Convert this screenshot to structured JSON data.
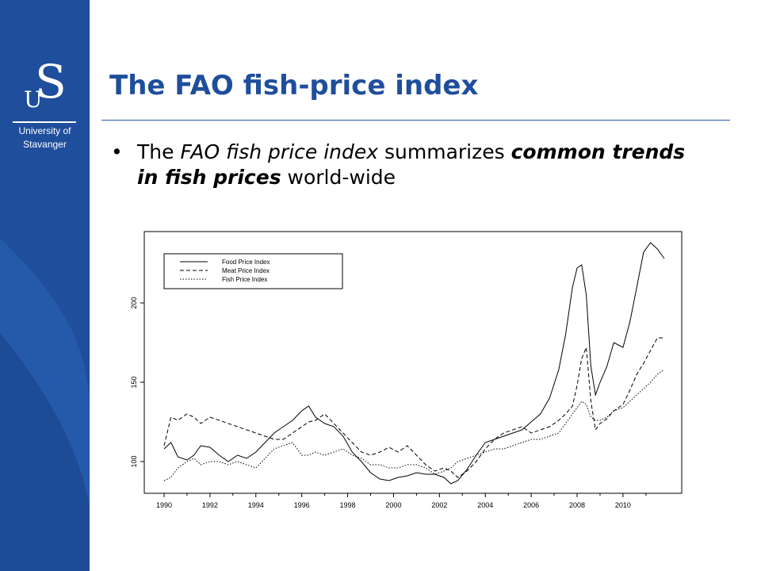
{
  "slide": {
    "title": "The FAO fish-price index",
    "bullet": {
      "parts": [
        {
          "text": "The ",
          "style": "normal"
        },
        {
          "text": "FAO fish price index",
          "style": "italic"
        },
        {
          "text": " summarizes ",
          "style": "normal"
        },
        {
          "text": "common trends in fish prices",
          "style": "bold-italic"
        },
        {
          "text": " world-wide",
          "style": "normal"
        }
      ]
    }
  },
  "branding": {
    "logo_letters": [
      "U",
      "S"
    ],
    "logo_line1": "University of",
    "logo_line2": "Stavanger",
    "sidebar_color": "#1f4e9c",
    "title_color": "#1f4e9c"
  },
  "chart_data": {
    "type": "line",
    "title": "",
    "xlabel": "",
    "ylabel": "",
    "xlim": [
      1990,
      2011.8
    ],
    "ylim": [
      80,
      245
    ],
    "x_ticks": [
      "1990",
      "1992",
      "1994",
      "1996",
      "1998",
      "2000",
      "2002",
      "2004",
      "2006",
      "2008",
      "2010"
    ],
    "y_ticks": [
      "100",
      "150",
      "200"
    ],
    "legend": {
      "position": "top-left",
      "entries": [
        "Food Price Index",
        "Meat Price Index",
        "Fish Price Index"
      ]
    },
    "series": [
      {
        "name": "Food Price Index",
        "style": "solid",
        "x": [
          1990.0,
          1990.3,
          1990.6,
          1991.0,
          1991.3,
          1991.6,
          1992.0,
          1992.4,
          1992.8,
          1993.2,
          1993.6,
          1994.0,
          1994.4,
          1994.8,
          1995.2,
          1995.6,
          1996.0,
          1996.3,
          1996.6,
          1997.0,
          1997.4,
          1997.8,
          1998.2,
          1998.6,
          1999.0,
          1999.4,
          1999.8,
          2000.2,
          2000.6,
          2001.0,
          2001.4,
          2001.8,
          2002.2,
          2002.5,
          2002.8,
          2003.2,
          2003.6,
          2004.0,
          2004.4,
          2004.8,
          2005.2,
          2005.6,
          2006.0,
          2006.4,
          2006.8,
          2007.2,
          2007.5,
          2007.8,
          2008.0,
          2008.2,
          2008.4,
          2008.6,
          2008.8,
          2009.0,
          2009.3,
          2009.6,
          2010.0,
          2010.3,
          2010.6,
          2010.9,
          2011.2,
          2011.5,
          2011.8
        ],
        "y": [
          108,
          112,
          103,
          101,
          104,
          110,
          109,
          104,
          100,
          104,
          102,
          106,
          112,
          118,
          122,
          126,
          132,
          135,
          128,
          124,
          122,
          116,
          106,
          100,
          93,
          89,
          88,
          90,
          91,
          93,
          92,
          92,
          90,
          86,
          88,
          95,
          104,
          112,
          114,
          116,
          118,
          120,
          125,
          130,
          140,
          158,
          180,
          210,
          222,
          224,
          205,
          160,
          142,
          150,
          160,
          175,
          172,
          188,
          210,
          232,
          238,
          234,
          228
        ]
      },
      {
        "name": "Meat Price Index",
        "style": "dashed",
        "x": [
          1990.0,
          1990.3,
          1990.6,
          1991.0,
          1991.3,
          1991.6,
          1992.0,
          1992.4,
          1992.8,
          1993.2,
          1993.6,
          1994.0,
          1994.4,
          1994.8,
          1995.2,
          1995.6,
          1996.0,
          1996.3,
          1996.6,
          1997.0,
          1997.4,
          1997.8,
          1998.2,
          1998.6,
          1999.0,
          1999.4,
          1999.8,
          2000.2,
          2000.6,
          2001.0,
          2001.4,
          2001.8,
          2002.2,
          2002.5,
          2002.8,
          2003.2,
          2003.6,
          2004.0,
          2004.4,
          2004.8,
          2005.2,
          2005.6,
          2006.0,
          2006.4,
          2006.8,
          2007.2,
          2007.5,
          2007.8,
          2008.0,
          2008.2,
          2008.4,
          2008.6,
          2008.8,
          2009.0,
          2009.3,
          2009.6,
          2010.0,
          2010.3,
          2010.6,
          2010.9,
          2011.2,
          2011.5,
          2011.8
        ],
        "y": [
          110,
          128,
          126,
          130,
          128,
          124,
          128,
          126,
          124,
          122,
          120,
          118,
          116,
          114,
          114,
          118,
          122,
          125,
          126,
          130,
          124,
          118,
          112,
          106,
          104,
          106,
          109,
          106,
          110,
          104,
          98,
          94,
          96,
          94,
          90,
          94,
          100,
          108,
          114,
          118,
          120,
          122,
          118,
          120,
          122,
          126,
          130,
          135,
          148,
          165,
          172,
          138,
          120,
          124,
          127,
          132,
          136,
          145,
          155,
          162,
          170,
          178,
          178
        ]
      },
      {
        "name": "Fish Price Index",
        "style": "dotted",
        "x": [
          1990.0,
          1990.3,
          1990.6,
          1991.0,
          1991.3,
          1991.6,
          1992.0,
          1992.4,
          1992.8,
          1993.2,
          1993.6,
          1994.0,
          1994.4,
          1994.8,
          1995.2,
          1995.6,
          1996.0,
          1996.3,
          1996.6,
          1997.0,
          1997.4,
          1997.8,
          1998.2,
          1998.6,
          1999.0,
          1999.4,
          1999.8,
          2000.2,
          2000.6,
          2001.0,
          2001.4,
          2001.8,
          2002.2,
          2002.5,
          2002.8,
          2003.2,
          2003.6,
          2004.0,
          2004.4,
          2004.8,
          2005.2,
          2005.6,
          2006.0,
          2006.4,
          2006.8,
          2007.2,
          2007.5,
          2007.8,
          2008.0,
          2008.2,
          2008.4,
          2008.6,
          2008.8,
          2009.0,
          2009.3,
          2009.6,
          2010.0,
          2010.3,
          2010.6,
          2010.9,
          2011.2,
          2011.5,
          2011.8
        ],
        "y": [
          88,
          90,
          96,
          100,
          102,
          98,
          100,
          100,
          98,
          100,
          98,
          96,
          102,
          108,
          110,
          112,
          104,
          104,
          106,
          104,
          106,
          108,
          104,
          102,
          98,
          98,
          96,
          96,
          98,
          98,
          96,
          92,
          94,
          96,
          100,
          102,
          104,
          106,
          108,
          108,
          110,
          112,
          114,
          114,
          116,
          118,
          124,
          130,
          134,
          138,
          136,
          128,
          126,
          126,
          128,
          132,
          134,
          138,
          142,
          146,
          150,
          155,
          158
        ]
      }
    ]
  }
}
